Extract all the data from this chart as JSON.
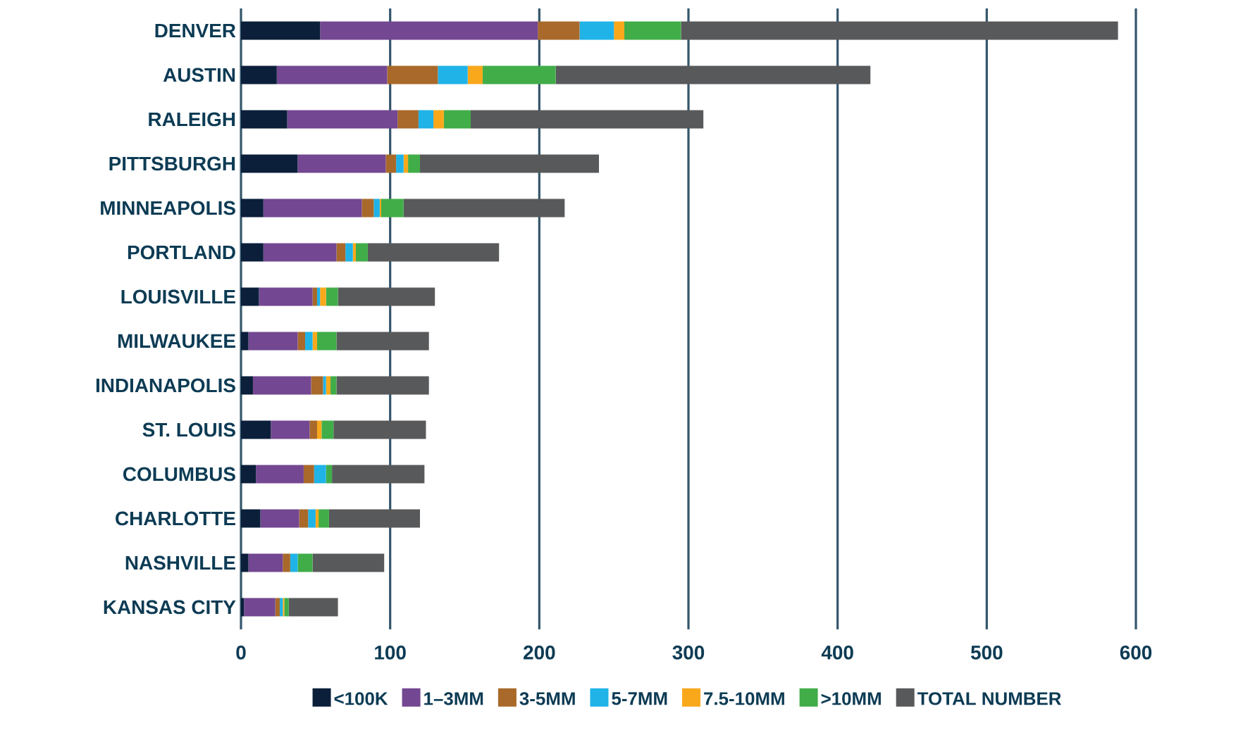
{
  "chart_data": {
    "type": "bar",
    "orientation": "horizontal",
    "stacked": true,
    "categories": [
      "DENVER",
      "AUSTIN",
      "RALEIGH",
      "PITTSBURGH",
      "MINNEAPOLIS",
      "PORTLAND",
      "LOUISVILLE",
      "MILWAUKEE",
      "INDIANAPOLIS",
      "ST. LOUIS",
      "COLUMBUS",
      "CHARLOTTE",
      "NASHVILLE",
      "KANSAS CITY"
    ],
    "series": [
      {
        "name": "<100K",
        "color": "#0b1f3a",
        "values": [
          53,
          24,
          31,
          38,
          15,
          15,
          12,
          5,
          8,
          20,
          10,
          13,
          5,
          2
        ]
      },
      {
        "name": "1–3MM",
        "color": "#734791",
        "values": [
          146,
          74,
          74,
          59,
          66,
          49,
          36,
          33,
          39,
          26,
          32,
          26,
          23,
          21
        ]
      },
      {
        "name": "3-5MM",
        "color": "#a8692a",
        "values": [
          28,
          34,
          14,
          7,
          8,
          6,
          3,
          5,
          8,
          5,
          7,
          6,
          5,
          3
        ]
      },
      {
        "name": "5-7MM",
        "color": "#1fb3e8",
        "values": [
          23,
          20,
          10,
          5,
          4,
          5,
          2,
          5,
          2,
          0,
          8,
          5,
          5,
          2
        ]
      },
      {
        "name": "7.5-10MM",
        "color": "#f9a81c",
        "values": [
          7,
          10,
          7,
          3,
          1,
          2,
          4,
          3,
          3,
          3,
          0,
          2,
          0,
          1
        ]
      },
      {
        "name": ">10MM",
        "color": "#41ad49",
        "values": [
          38,
          49,
          18,
          8,
          15,
          8,
          8,
          13,
          4,
          8,
          4,
          7,
          10,
          3
        ]
      },
      {
        "name": "TOTAL NUMBER",
        "color": "#58595b",
        "values": [
          293,
          211,
          156,
          120,
          108,
          88,
          65,
          62,
          62,
          62,
          62,
          61,
          48,
          33
        ]
      }
    ],
    "xlim": [
      0,
      600
    ],
    "xticks": [
      0,
      100,
      200,
      300,
      400,
      500,
      600
    ],
    "grid": "x",
    "legend": "bottom"
  }
}
